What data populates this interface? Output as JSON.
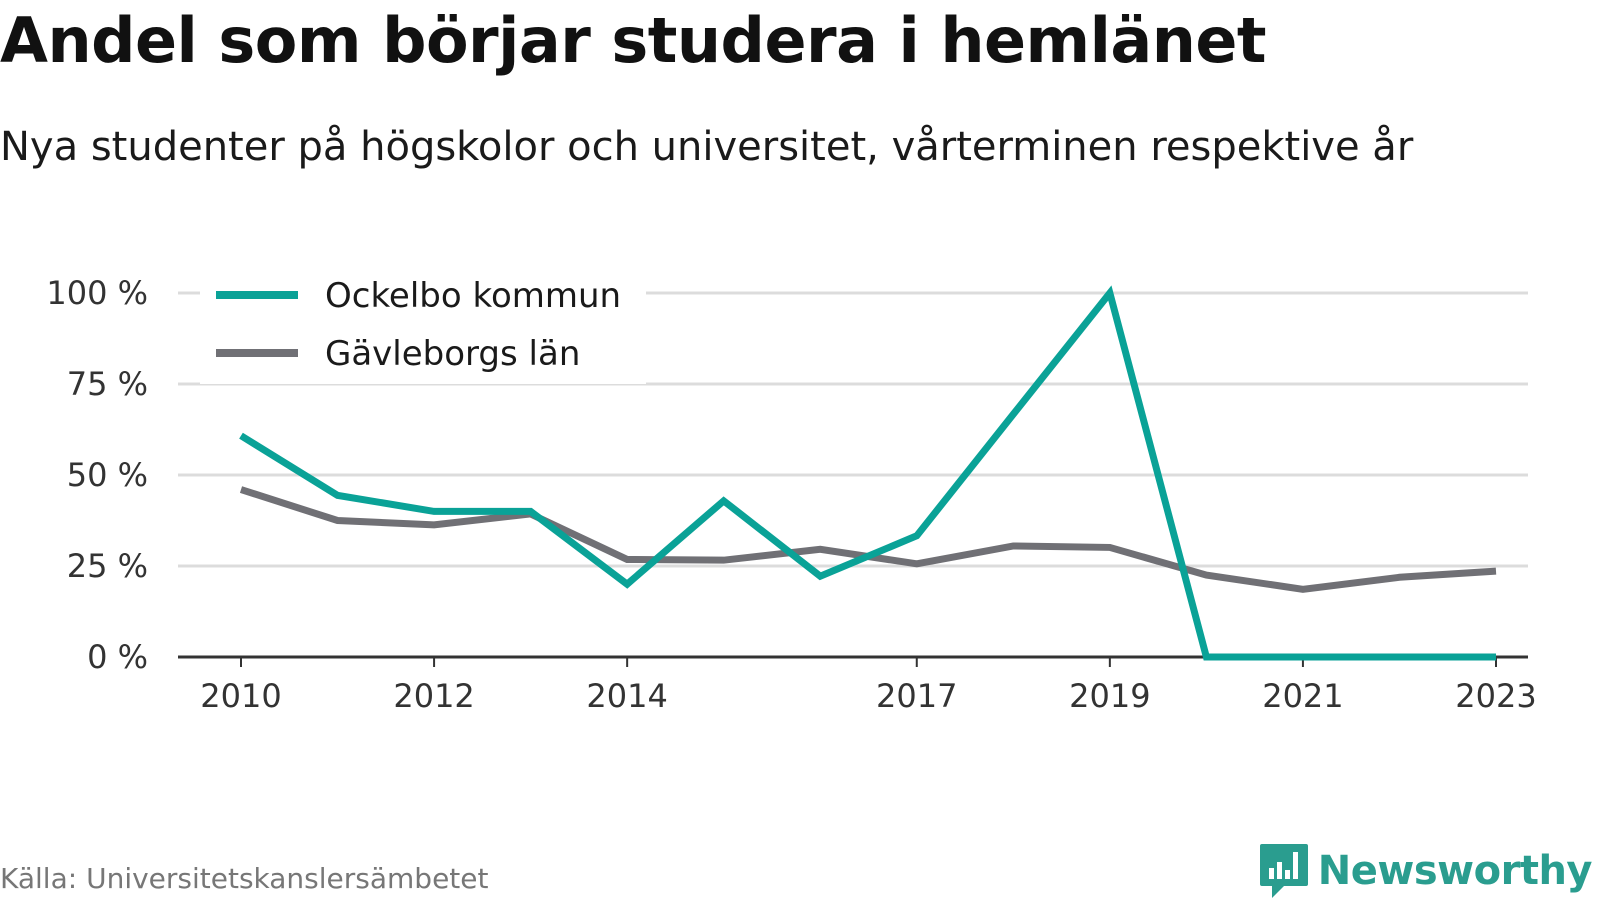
{
  "header": {
    "title": "Andel som börjar studera i hemlänet",
    "subtitle": "Nya studenter på högskolor och universitet, vårterminen respektive år"
  },
  "footer": {
    "source": "Källa: Universitetskanslersämbetet",
    "brand": "Newsworthy",
    "brand_icon": "chart-bubble-icon"
  },
  "colors": {
    "accent": "#0aa297",
    "secondary": "#707075",
    "grid": "#dcdcdc",
    "axis": "#333333",
    "brand": "#2a9d8f"
  },
  "chart_data": {
    "type": "line",
    "title": "Andel som börjar studera i hemlänet",
    "subtitle": "Nya studenter på högskolor och universitet, vårterminen respektive år",
    "x": [
      2010,
      2011,
      2012,
      2013,
      2014,
      2015,
      2016,
      2017,
      2018,
      2019,
      2020,
      2021,
      2022,
      2023
    ],
    "x_ticks": [
      "2010",
      "2012",
      "2014",
      "2017",
      "2019",
      "2021",
      "2023"
    ],
    "y_ticks": [
      "0 %",
      "25 %",
      "50 %",
      "75 %",
      "100 %"
    ],
    "ylim": [
      0,
      100
    ],
    "grid": true,
    "legend_position": "top-left",
    "series": [
      {
        "name": "Ockelbo kommun",
        "color": "#0aa297",
        "values": [
          60.8,
          44.4,
          40.0,
          40.0,
          20.0,
          42.9,
          22.2,
          33.3,
          66.7,
          100.0,
          0.0,
          0.0,
          0.0,
          0.0
        ]
      },
      {
        "name": "Gävleborgs län",
        "color": "#707075",
        "values": [
          46.0,
          37.5,
          36.3,
          39.3,
          26.8,
          26.6,
          29.6,
          25.6,
          30.5,
          30.1,
          22.5,
          18.6,
          21.9,
          23.6
        ]
      }
    ]
  }
}
